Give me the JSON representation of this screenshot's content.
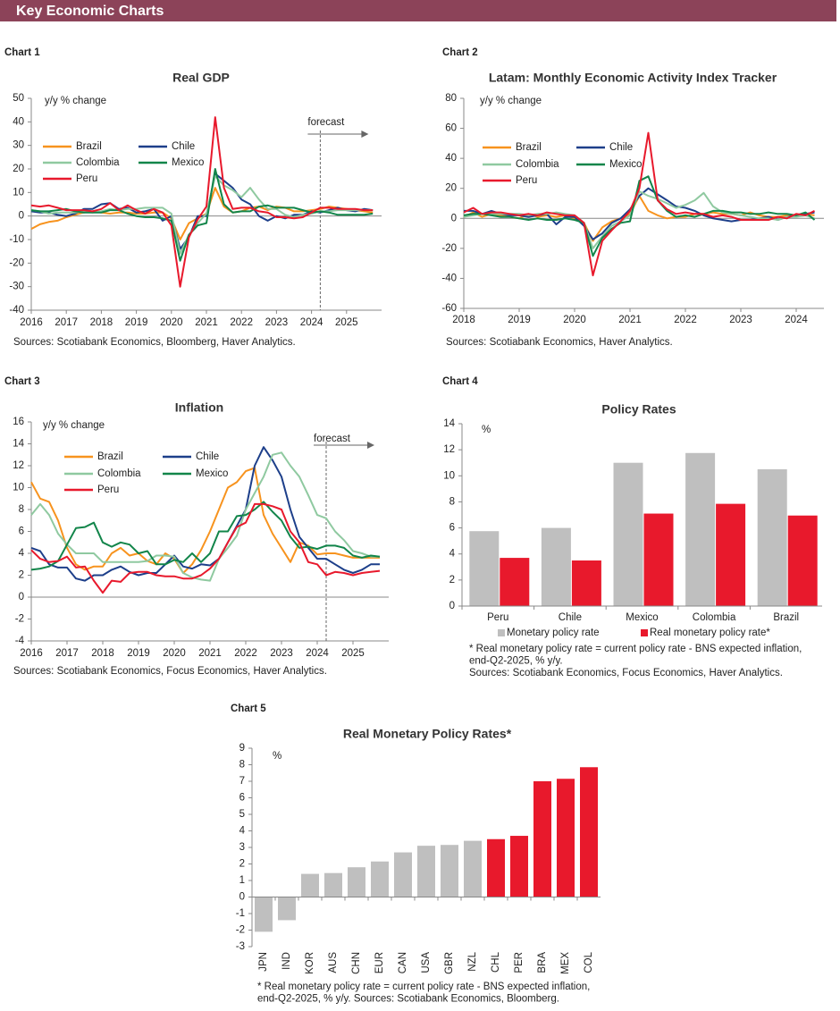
{
  "header": {
    "title": "Key Economic Charts"
  },
  "chart_data": [
    {
      "type": "line",
      "label": "Chart 1",
      "title": "Real GDP",
      "ylabel": "y/y % change",
      "sources": "Sources: Scotiabank Economics, Bloomberg, Haver Analytics.",
      "xlim": [
        2016,
        2026
      ],
      "xticks": [
        2016,
        2017,
        2018,
        2019,
        2020,
        2021,
        2022,
        2023,
        2024,
        2025
      ],
      "ylim": [
        -40,
        50
      ],
      "yticks": [
        -40,
        -30,
        -20,
        -10,
        0,
        10,
        20,
        30,
        40,
        50
      ],
      "annotation": {
        "text": "forecast",
        "x": 2024.25
      },
      "x": [
        2016,
        2016.25,
        2016.5,
        2016.75,
        2017,
        2017.25,
        2017.5,
        2017.75,
        2018,
        2018.25,
        2018.5,
        2018.75,
        2019,
        2019.25,
        2019.5,
        2019.75,
        2020,
        2020.25,
        2020.5,
        2020.75,
        2021,
        2021.25,
        2021.5,
        2021.75,
        2022,
        2022.25,
        2022.5,
        2022.75,
        2023,
        2023.25,
        2023.5,
        2023.75,
        2024,
        2024.25,
        2024.5,
        2024.75,
        2025,
        2025.25,
        2025.5,
        2025.75
      ],
      "series": [
        {
          "name": "Brazil",
          "color": "#f7931e",
          "values": [
            -5.5,
            -3.5,
            -2.5,
            -2,
            -0.5,
            0.5,
            1.5,
            2,
            1.5,
            1,
            1.5,
            1.5,
            1,
            1,
            1.5,
            1.5,
            -1,
            -10,
            -3,
            -1,
            1,
            12,
            4,
            1.5,
            2,
            3.5,
            4,
            2.5,
            4,
            3.5,
            2,
            2,
            2.5,
            3,
            4,
            3.5,
            3,
            2.5,
            2,
            1.5
          ]
        },
        {
          "name": "Chile",
          "color": "#1d3f8a",
          "values": [
            2,
            1.5,
            1.5,
            0.5,
            0,
            1,
            3,
            3,
            5,
            5.5,
            3,
            3.5,
            1.5,
            2,
            3,
            -2,
            0,
            -14,
            -9,
            0,
            0,
            18,
            15,
            12,
            7,
            5,
            0,
            -2,
            0,
            -1,
            0.5,
            0.5,
            2,
            1.5,
            2.5,
            3.5,
            2.5,
            2,
            3,
            2.5
          ]
        },
        {
          "name": "Colombia",
          "color": "#8fc9a0",
          "values": [
            2.5,
            2,
            1,
            1.5,
            1.5,
            1.5,
            2,
            1.5,
            2,
            3,
            2.5,
            3,
            3,
            3.5,
            3.5,
            3.5,
            1,
            -16,
            -8,
            -3,
            1,
            17,
            13,
            11,
            8,
            12,
            7,
            3,
            3,
            0.5,
            -0.5,
            0.5,
            1,
            2,
            2,
            2.5,
            2.5,
            2.5,
            2.5,
            2.5
          ]
        },
        {
          "name": "Mexico",
          "color": "#12854a",
          "values": [
            2.5,
            2,
            2,
            2.5,
            3,
            2,
            1.5,
            1.5,
            1.5,
            2.5,
            2.5,
            1,
            0,
            -0.5,
            -0.5,
            -1,
            -2,
            -19,
            -8,
            -4,
            -3,
            20,
            5,
            1.5,
            2,
            2,
            4,
            4.5,
            3.5,
            3.5,
            3.5,
            2.5,
            1.5,
            2,
            1.5,
            0.5,
            0.5,
            0.5,
            0.5,
            1
          ]
        },
        {
          "name": "Peru",
          "color": "#e8192c",
          "values": [
            4.5,
            4,
            4.5,
            3.5,
            2.5,
            2.5,
            2.5,
            2,
            3,
            5.5,
            2.5,
            4.5,
            2.5,
            1,
            3,
            1.5,
            -4,
            -30,
            -9,
            -1.5,
            4,
            42,
            12,
            3,
            3.5,
            3.5,
            2,
            1.5,
            -0.5,
            -0.5,
            -1,
            -0.5,
            1.5,
            3.5,
            3.5,
            3,
            3,
            3,
            2.5,
            2.5
          ]
        }
      ]
    },
    {
      "type": "line",
      "label": "Chart 2",
      "title": "Latam: Monthly Economic Activity Index Tracker",
      "ylabel": "y/y % change",
      "sources": "Sources: Scotiabank Economics, Haver Analytics.",
      "xlim": [
        2018,
        2024.5
      ],
      "xticks": [
        2018,
        2019,
        2020,
        2021,
        2022,
        2023,
        2024
      ],
      "ylim": [
        -60,
        80
      ],
      "yticks": [
        -60,
        -40,
        -20,
        0,
        20,
        40,
        60,
        80
      ],
      "x": [
        2018,
        2018.17,
        2018.33,
        2018.5,
        2018.67,
        2018.83,
        2019,
        2019.17,
        2019.33,
        2019.5,
        2019.67,
        2019.83,
        2020,
        2020.17,
        2020.33,
        2020.5,
        2020.67,
        2020.83,
        2021,
        2021.17,
        2021.33,
        2021.5,
        2021.67,
        2021.83,
        2022,
        2022.17,
        2022.33,
        2022.5,
        2022.67,
        2022.83,
        2023,
        2023.17,
        2023.33,
        2023.5,
        2023.67,
        2023.83,
        2024,
        2024.17,
        2024.33
      ],
      "series": [
        {
          "name": "Brazil",
          "color": "#f7931e",
          "values": [
            1,
            4,
            1,
            3,
            2,
            1,
            0,
            3,
            1,
            2,
            1,
            2,
            0,
            -3,
            -15,
            -6,
            -2,
            0,
            3,
            15,
            5,
            2,
            0,
            1,
            1,
            3,
            3,
            4,
            3,
            3,
            2,
            4,
            2,
            1,
            1,
            2,
            2,
            3,
            2
          ]
        },
        {
          "name": "Chile",
          "color": "#1d3f8a",
          "values": [
            5,
            5,
            3,
            5,
            3,
            2,
            2,
            1,
            2,
            3,
            -4,
            1,
            1,
            -5,
            -14,
            -10,
            -3,
            0,
            6,
            15,
            20,
            16,
            12,
            8,
            7,
            5,
            2,
            0,
            -1,
            -2,
            -1,
            -1,
            0,
            1,
            -1,
            1,
            2,
            3,
            4
          ]
        },
        {
          "name": "Colombia",
          "color": "#8fc9a0",
          "values": [
            1,
            2,
            3,
            3,
            3,
            3,
            3,
            2,
            3,
            3,
            4,
            3,
            2,
            -3,
            -20,
            -12,
            -5,
            -2,
            2,
            18,
            15,
            13,
            10,
            7,
            9,
            12,
            17,
            8,
            4,
            3,
            2,
            1,
            0,
            0,
            -1,
            1,
            1,
            2,
            0
          ]
        },
        {
          "name": "Mexico",
          "color": "#12854a",
          "values": [
            2,
            3,
            3,
            2,
            1,
            1,
            0,
            -1,
            0,
            -1,
            -1,
            0,
            -1,
            -3,
            -25,
            -13,
            -7,
            -3,
            -2,
            25,
            28,
            12,
            5,
            1,
            2,
            1,
            3,
            5,
            5,
            4,
            4,
            3,
            3,
            4,
            3,
            3,
            2,
            4,
            -1
          ]
        },
        {
          "name": "Peru",
          "color": "#e8192c",
          "values": [
            4,
            7,
            3,
            4,
            4,
            3,
            2,
            3,
            2,
            4,
            3,
            2,
            2,
            -3,
            -38,
            -15,
            -8,
            -2,
            5,
            20,
            57,
            12,
            6,
            3,
            4,
            3,
            3,
            1,
            2,
            1,
            -1,
            -1,
            -1,
            -1,
            1,
            0,
            3,
            2,
            5
          ]
        }
      ]
    },
    {
      "type": "line",
      "label": "Chart 3",
      "title": "Inflation",
      "ylabel": "y/y % change",
      "sources": "Sources: Scotiabank Economics, Focus Economics, Haver Analytics.",
      "xlim": [
        2016,
        2026
      ],
      "xticks": [
        2016,
        2017,
        2018,
        2019,
        2020,
        2021,
        2022,
        2023,
        2024,
        2025
      ],
      "ylim": [
        -4,
        16
      ],
      "yticks": [
        -4,
        -2,
        0,
        2,
        4,
        6,
        8,
        10,
        12,
        14,
        16
      ],
      "annotation": {
        "text": "forecast",
        "x": 2024.25
      },
      "x": [
        2016,
        2016.25,
        2016.5,
        2016.75,
        2017,
        2017.25,
        2017.5,
        2017.75,
        2018,
        2018.25,
        2018.5,
        2018.75,
        2019,
        2019.25,
        2019.5,
        2019.75,
        2020,
        2020.25,
        2020.5,
        2020.75,
        2021,
        2021.25,
        2021.5,
        2021.75,
        2022,
        2022.25,
        2022.5,
        2022.75,
        2023,
        2023.25,
        2023.5,
        2023.75,
        2024,
        2024.25,
        2024.5,
        2024.75,
        2025,
        2025.25,
        2025.5,
        2025.75
      ],
      "series": [
        {
          "name": "Brazil",
          "color": "#f7931e",
          "values": [
            10.5,
            9,
            8.7,
            7,
            4.5,
            3,
            2.5,
            2.8,
            2.8,
            4,
            4.5,
            3.8,
            4,
            3.3,
            3,
            4,
            3.5,
            2.2,
            3,
            4.3,
            6,
            8,
            10,
            10.5,
            11.5,
            11.8,
            7.5,
            5.8,
            4.5,
            3.2,
            5,
            4.7,
            3.9,
            4,
            4,
            3.8,
            3.6,
            3.6,
            3.6,
            3.6
          ]
        },
        {
          "name": "Chile",
          "color": "#1d3f8a",
          "values": [
            4.5,
            4.2,
            3,
            2.7,
            2.7,
            1.7,
            1.5,
            2,
            2,
            2.5,
            2.8,
            2.3,
            2,
            2.2,
            2.2,
            3,
            3.8,
            2.8,
            2.6,
            3,
            2.9,
            3.5,
            5,
            6.5,
            8,
            12,
            13.7,
            12.5,
            11,
            8,
            5.5,
            4.5,
            3.5,
            3.5,
            3,
            2.5,
            2.2,
            2.5,
            3,
            3
          ]
        },
        {
          "name": "Colombia",
          "color": "#8fc9a0",
          "values": [
            7.5,
            8.5,
            7.5,
            5.8,
            4.8,
            4,
            4,
            4,
            3.2,
            3.2,
            3.2,
            3.2,
            3.2,
            3.3,
            3.8,
            3.8,
            3.7,
            2.2,
            1.8,
            1.6,
            1.5,
            3.5,
            4.5,
            5.6,
            8,
            9.5,
            11,
            13,
            13.2,
            12,
            11,
            9.3,
            7.5,
            7.2,
            6,
            5.2,
            4.2,
            4,
            3.7,
            3.7
          ]
        },
        {
          "name": "Mexico",
          "color": "#12854a",
          "values": [
            2.5,
            2.6,
            2.8,
            3.3,
            4.8,
            6.3,
            6.4,
            6.8,
            5,
            4.6,
            5,
            4.8,
            4,
            4.2,
            3,
            3,
            3.4,
            3.2,
            4,
            3.2,
            4,
            6,
            6,
            7.4,
            7.5,
            8,
            8.7,
            7.8,
            7,
            5.5,
            4.5,
            4.6,
            4.4,
            4.7,
            4.7,
            4.5,
            3.8,
            3.6,
            3.8,
            3.7
          ]
        },
        {
          "name": "Peru",
          "color": "#e8192c",
          "values": [
            4.3,
            3.5,
            3.2,
            3.3,
            3.7,
            2.7,
            2.8,
            1.5,
            0.4,
            1.5,
            1.4,
            2.2,
            2.3,
            2.3,
            2,
            1.9,
            1.9,
            1.7,
            1.7,
            2,
            2.6,
            3.5,
            5,
            6.4,
            6.8,
            8.5,
            8.5,
            8.3,
            8,
            6,
            5,
            3.2,
            3,
            2,
            2.3,
            2.2,
            2,
            2.2,
            2.3,
            2.4
          ]
        }
      ]
    },
    {
      "type": "bar",
      "label": "Chart 4",
      "title": "Policy Rates",
      "ylabel": "%",
      "notes": [
        "* Real monetary policy rate = current policy rate - BNS expected inflation,",
        "end-Q2-2025, % y/y.",
        "Sources: Scotiabank Economics, Focus Economics, Haver Analytics."
      ],
      "categories": [
        "Peru",
        "Chile",
        "Mexico",
        "Colombia",
        "Brazil"
      ],
      "ylim": [
        0,
        14
      ],
      "yticks": [
        0,
        2,
        4,
        6,
        8,
        10,
        12,
        14
      ],
      "series": [
        {
          "name": "Monetary policy rate",
          "color": "#bfbfbf",
          "values": [
            5.75,
            6,
            11,
            11.75,
            10.5
          ]
        },
        {
          "name": "Real monetary policy rate*",
          "color": "#e8192c",
          "values": [
            3.7,
            3.5,
            7.1,
            7.85,
            6.95
          ]
        }
      ]
    },
    {
      "type": "bar",
      "label": "Chart 5",
      "title": "Real Monetary Policy Rates*",
      "ylabel": "%",
      "notes": [
        "* Real monetary policy rate = current policy rate - BNS expected inflation,",
        "end-Q2-2025, % y/y. Sources: Scotiabank Economics, Bloomberg."
      ],
      "categories": [
        "JPN",
        "IND",
        "KOR",
        "AUS",
        "CHN",
        "EUR",
        "CAN",
        "USA",
        "GBR",
        "NZL",
        "CHL",
        "PER",
        "BRA",
        "MEX",
        "COL"
      ],
      "values": [
        -2.1,
        -1.4,
        1.4,
        1.45,
        1.8,
        2.15,
        2.7,
        3.1,
        3.15,
        3.4,
        3.5,
        3.7,
        7.0,
        7.15,
        7.85
      ],
      "colors": [
        "#bfbfbf",
        "#bfbfbf",
        "#bfbfbf",
        "#bfbfbf",
        "#bfbfbf",
        "#bfbfbf",
        "#bfbfbf",
        "#bfbfbf",
        "#bfbfbf",
        "#bfbfbf",
        "#e8192c",
        "#e8192c",
        "#e8192c",
        "#e8192c",
        "#e8192c"
      ],
      "ylim": [
        -3,
        9
      ],
      "yticks": [
        -3,
        -2,
        -1,
        0,
        1,
        2,
        3,
        4,
        5,
        6,
        7,
        8,
        9
      ]
    }
  ]
}
